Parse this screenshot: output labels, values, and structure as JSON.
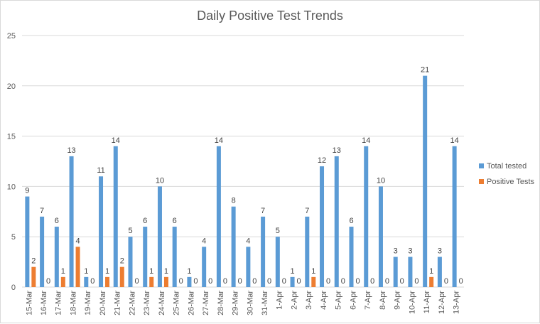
{
  "chart_data": {
    "type": "bar",
    "title": "Daily Positive Test Trends",
    "categories": [
      "15-Mar",
      "16-Mar",
      "17-Mar",
      "18-Mar",
      "19-Mar",
      "20-Mar",
      "21-Mar",
      "22-Mar",
      "23-Mar",
      "24-Mar",
      "25-Mar",
      "26-Mar",
      "27-Mar",
      "28-Mar",
      "29-Mar",
      "30-Mar",
      "31-Mar",
      "1-Apr",
      "2-Apr",
      "3-Apr",
      "4-Apr",
      "5-Apr",
      "6-Apr",
      "7-Apr",
      "8-Apr",
      "9-Apr",
      "10-Apr",
      "11-Apr",
      "12-Apr",
      "13-Apr"
    ],
    "series": [
      {
        "name": "Total tested",
        "color": "#5b9bd5",
        "values": [
          9,
          7,
          6,
          13,
          1,
          11,
          14,
          5,
          6,
          10,
          6,
          1,
          4,
          14,
          8,
          4,
          7,
          5,
          1,
          7,
          12,
          13,
          6,
          14,
          10,
          3,
          3,
          21,
          3,
          14
        ]
      },
      {
        "name": "Positive Tests",
        "color": "#ed7d31",
        "values": [
          2,
          0,
          1,
          4,
          0,
          1,
          2,
          0,
          1,
          1,
          0,
          0,
          0,
          0,
          0,
          0,
          0,
          0,
          0,
          1,
          0,
          0,
          0,
          0,
          0,
          0,
          0,
          1,
          0,
          0
        ]
      }
    ],
    "ylim": [
      0,
      25
    ],
    "yticks": [
      0,
      5,
      10,
      15,
      20,
      25
    ],
    "grid": true,
    "legend": "right",
    "data_labels": true
  }
}
